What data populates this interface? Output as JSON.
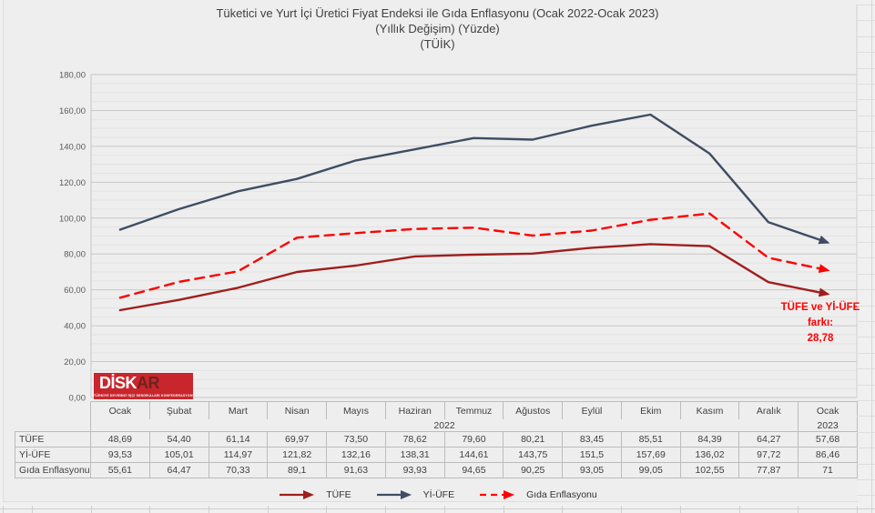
{
  "title": {
    "line1": "Tüketici ve Yurt İçi Üretici Fiyat Endeksi ile Gıda Enflasyonu (Ocak 2022-Ocak 2023)",
    "line2": "(Yıllık Değişim) (Yüzde)",
    "line3": "(TÜİK)"
  },
  "annotation": {
    "line1": "TÜFE ve Yİ-ÜFE",
    "line2": "farkı:",
    "line3": "28,78",
    "color": "#FF0000"
  },
  "logo": {
    "text_main": "DİSK",
    "text_accent": "AR",
    "subtitle": "TÜRKİYE DEVRİMCİ İŞÇİ SENDİKALARI KONFEDERASYONU ARAŞTIRMA MERKEZİ",
    "bg_color": "#C8262C",
    "main_text_color": "#FFFFFF",
    "accent_text_color": "#6E2320"
  },
  "colors": {
    "background": "#EEEEEE",
    "major_grid": "#C7C7C7",
    "minor_grid": "#E3E3E3",
    "axis_text": "#595959",
    "title_text": "#404040",
    "table_border": "#BCBCBC",
    "table_text": "#404040"
  },
  "chart_data": {
    "type": "line",
    "title": "Tüketici ve Yurt İçi Üretici Fiyat Endeksi ile Gıda Enflasyonu (Ocak 2022-Ocak 2023) (Yıllık Değişim) (Yüzde) (TÜİK)",
    "x_categories": [
      "Ocak",
      "Şubat",
      "Mart",
      "Nisan",
      "Mayıs",
      "Haziran",
      "Temmuz",
      "Ağustos",
      "Eylül",
      "Ekim",
      "Kasım",
      "Aralık",
      "Ocak"
    ],
    "x_year_groups": [
      {
        "label": "2022",
        "span": 12
      },
      {
        "label": "2023",
        "span": 1
      }
    ],
    "ylim": [
      0,
      180
    ],
    "ytick_step": 20,
    "ytick_labels": [
      "0,00",
      "20,00",
      "40,00",
      "60,00",
      "80,00",
      "100,00",
      "120,00",
      "140,00",
      "160,00",
      "180,00"
    ],
    "grid": "horizontal major + minor",
    "legend_position": "bottom",
    "series": [
      {
        "name": "TÜFE",
        "color": "#A01E1E",
        "dash": false,
        "values": [
          48.69,
          54.4,
          61.14,
          69.97,
          73.5,
          78.62,
          79.6,
          80.21,
          83.45,
          85.51,
          84.39,
          64.27,
          57.68
        ],
        "display": [
          "48,69",
          "54,40",
          "61,14",
          "69,97",
          "73,50",
          "78,62",
          "79,60",
          "80,21",
          "83,45",
          "85,51",
          "84,39",
          "64,27",
          "57,68"
        ]
      },
      {
        "name": "Yİ-ÜFE",
        "color": "#3F4D63",
        "dash": false,
        "values": [
          93.53,
          105.01,
          114.97,
          121.82,
          132.16,
          138.31,
          144.61,
          143.75,
          151.5,
          157.69,
          136.02,
          97.72,
          86.46
        ],
        "display": [
          "93,53",
          "105,01",
          "114,97",
          "121,82",
          "132,16",
          "138,31",
          "144,61",
          "143,75",
          "151,5",
          "157,69",
          "136,02",
          "97,72",
          "86,46"
        ]
      },
      {
        "name": "Gıda Enflasyonu",
        "color": "#FE0000",
        "dash": true,
        "values": [
          55.61,
          64.47,
          70.33,
          89.1,
          91.63,
          93.93,
          94.65,
          90.25,
          93.05,
          99.05,
          102.55,
          77.87,
          71
        ],
        "display": [
          "55,61",
          "64,47",
          "70,33",
          "89,1",
          "91,63",
          "93,93",
          "94,65",
          "90,25",
          "93,05",
          "99,05",
          "102,55",
          "77,87",
          "71"
        ]
      }
    ]
  }
}
